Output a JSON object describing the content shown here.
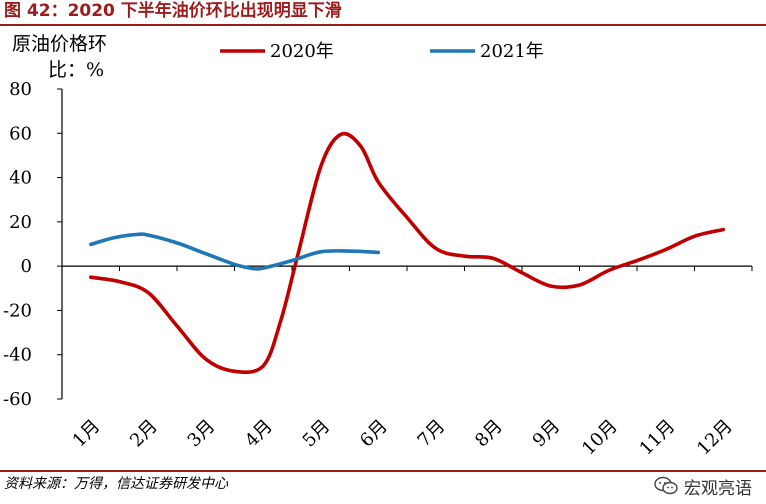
{
  "title": "图 42：2020 下半年油价环比出现明显下滑",
  "source": "资料来源：万得，信达证券研发中心",
  "watermark": "宏观亮语",
  "chart_data": {
    "type": "line",
    "ylabel_line1": "原油价格环",
    "ylabel_line2": "比：%",
    "categories": [
      "1月",
      "2月",
      "3月",
      "4月",
      "5月",
      "6月",
      "7月",
      "8月",
      "9月",
      "10月",
      "11月",
      "12月"
    ],
    "ylim": [
      -60,
      80
    ],
    "yticks": [
      "80",
      "60",
      "40",
      "20",
      "0",
      "-20",
      "-40",
      "-60"
    ],
    "yticks_values": [
      80,
      60,
      40,
      20,
      0,
      -20,
      -40,
      -60
    ],
    "legend_position": "top",
    "series": [
      {
        "name": "2020年",
        "color": "#c00000",
        "x": [
          1,
          1.5,
          2,
          2.5,
          3,
          3.5,
          4,
          4.3,
          4.6,
          5,
          5.35,
          5.7,
          6,
          6.5,
          7,
          7.5,
          8,
          8.5,
          9,
          9.5,
          10,
          10.5,
          11,
          11.5,
          12
        ],
        "values": [
          -5,
          -7,
          -12,
          -27,
          -42,
          -47.5,
          -45,
          -25,
          5,
          45,
          59.5,
          54,
          38,
          22,
          8,
          4.5,
          3.5,
          -3,
          -9,
          -8.5,
          -2,
          2.5,
          7.5,
          13.5,
          16.5
        ]
      },
      {
        "name": "2021年",
        "color": "#1f77b4",
        "x": [
          1,
          1.4,
          1.8,
          2,
          2.5,
          3,
          3.5,
          3.8,
          4,
          4.5,
          5,
          5.5,
          6
        ],
        "values": [
          9.8,
          12.8,
          14.3,
          14,
          10.5,
          5.6,
          0.8,
          -1,
          -0.9,
          2.5,
          6.5,
          6.8,
          6.2
        ]
      }
    ]
  }
}
